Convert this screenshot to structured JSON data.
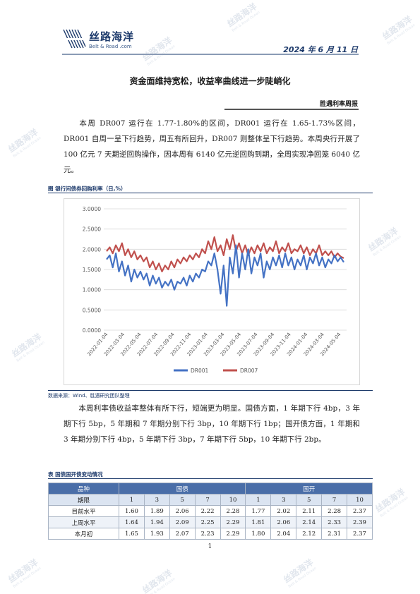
{
  "header": {
    "logo_cn": "丝路海洋",
    "logo_en": "Belt & Road .com",
    "date": "2024 年 6 月 11 日"
  },
  "watermark": {
    "cn": "丝路海洋",
    "en": "Belt & Road Ocean"
  },
  "title": "资金面维持宽松，收益率曲线进一步陡峭化",
  "report_name": "胜遇利率周报",
  "paragraphs": {
    "p1": "本周 DR007 运行在 1.77-1.80%的区间，DR001 运行在 1.65-1.73%区间，DR001 自周一呈下行趋势，周五有所回升，DR007 则整体呈下行趋势。本周央行开展了 100 亿元 7 天期逆回购操作，因本周有 6140 亿元逆回购到期，全周实现净回笼 6040 亿元。",
    "p2": "本周利率债收益率整体有所下行，短端更为明显。国债方面，1 年期下行 4bp，3 年期下行 5bp，5 年期和 7 年期分别下行 3bp，10 年期下行 1bp；国开债方面，1 年期和 3 年期分别下行 4bp，5 年期下行 3bp，7 年期下行 5bp，10 年期下行 2bp。"
  },
  "figure": {
    "caption": "图    银行间债券回购利率（日,%）",
    "source": "数据来源：Wind、胜遇研究团队整理"
  },
  "colors": {
    "dr001": "#4472c4",
    "dr007": "#c0504d",
    "brand": "#1d3a6b"
  },
  "chart_data": {
    "type": "line",
    "x_ticks": [
      "2022-01-04",
      "2022-03-04",
      "2022-05-04",
      "2022-07-04",
      "2022-09-04",
      "2022-11-04",
      "2023-01-04",
      "2023-03-04",
      "2023-05-04",
      "2023-07-04",
      "2023-09-04",
      "2023-11-04",
      "2024-01-04",
      "2024-03-04",
      "2024-05-04"
    ],
    "y_ticks": [
      "0.0000",
      "0.5000",
      "1.0000",
      "1.5000",
      "2.0000",
      "2.5000",
      "3.0000"
    ],
    "ylim": [
      0,
      3
    ],
    "legend_position": "bottom",
    "grid": true,
    "series": [
      {
        "name": "DR001",
        "values": [
          1.75,
          1.85,
          1.55,
          1.9,
          1.45,
          1.7,
          1.35,
          1.6,
          1.2,
          1.5,
          1.3,
          1.45,
          1.25,
          1.4,
          1.1,
          1.35,
          1.15,
          1.3,
          1.05,
          1.2,
          1.1,
          1.25,
          1.0,
          1.2,
          1.15,
          1.3,
          1.1,
          1.35,
          1.2,
          1.4,
          1.3,
          1.5,
          1.45,
          1.7,
          1.6,
          1.9,
          1.5,
          0.9,
          1.6,
          0.6,
          1.8,
          1.4,
          2.1,
          1.3,
          1.9,
          1.5,
          2.0,
          1.4,
          1.8,
          1.6,
          1.9,
          1.3,
          1.7,
          1.5,
          1.8,
          1.6,
          1.85,
          1.55,
          1.9,
          1.6,
          1.8,
          1.5,
          1.75,
          1.6,
          1.85,
          1.5,
          1.8,
          1.65,
          1.9,
          1.6,
          1.8,
          1.55,
          1.75,
          1.65,
          1.85,
          1.7,
          1.8,
          1.68
        ]
      },
      {
        "name": "DR007",
        "values": [
          1.95,
          2.05,
          1.9,
          2.1,
          1.95,
          2.15,
          1.85,
          2.0,
          1.8,
          1.95,
          1.75,
          1.85,
          1.7,
          1.8,
          1.55,
          1.7,
          1.5,
          1.65,
          1.45,
          1.6,
          1.5,
          1.7,
          1.55,
          1.75,
          1.65,
          1.8,
          1.7,
          1.85,
          1.75,
          1.9,
          1.8,
          2.0,
          1.9,
          2.2,
          2.0,
          2.3,
          1.95,
          2.1,
          1.85,
          2.25,
          2.0,
          2.35,
          1.95,
          2.15,
          1.9,
          2.1,
          1.85,
          2.05,
          1.9,
          2.1,
          1.95,
          2.15,
          1.9,
          2.05,
          1.95,
          2.2,
          1.9,
          2.05,
          1.95,
          2.15,
          1.9,
          2.0,
          1.95,
          2.1,
          1.9,
          2.05,
          1.85,
          2.0,
          1.9,
          2.1,
          1.85,
          1.95,
          1.85,
          1.95,
          1.8,
          1.9,
          1.82,
          1.78
        ]
      }
    ]
  },
  "table": {
    "caption": "表    国债国开债变动情况",
    "col_kind": "品种",
    "col_gz": "国债",
    "col_gk": "国开",
    "col_tenor": "期限",
    "tenors": [
      "1",
      "3",
      "5",
      "7",
      "10",
      "1",
      "3",
      "5",
      "7",
      "10"
    ],
    "rows": [
      {
        "label": "目前水平",
        "values": [
          "1.60",
          "1.89",
          "2.06",
          "2.22",
          "2.28",
          "1.77",
          "2.02",
          "2.11",
          "2.28",
          "2.37"
        ]
      },
      {
        "label": "上周水平",
        "values": [
          "1.64",
          "1.94",
          "2.09",
          "2.25",
          "2.29",
          "1.81",
          "2.06",
          "2.14",
          "2.33",
          "2.39"
        ]
      },
      {
        "label": "本月初",
        "values": [
          "1.65",
          "1.93",
          "2.07",
          "2.23",
          "2.29",
          "1.80",
          "2.04",
          "2.12",
          "2.31",
          "2.37"
        ]
      }
    ]
  },
  "page_number": "1"
}
